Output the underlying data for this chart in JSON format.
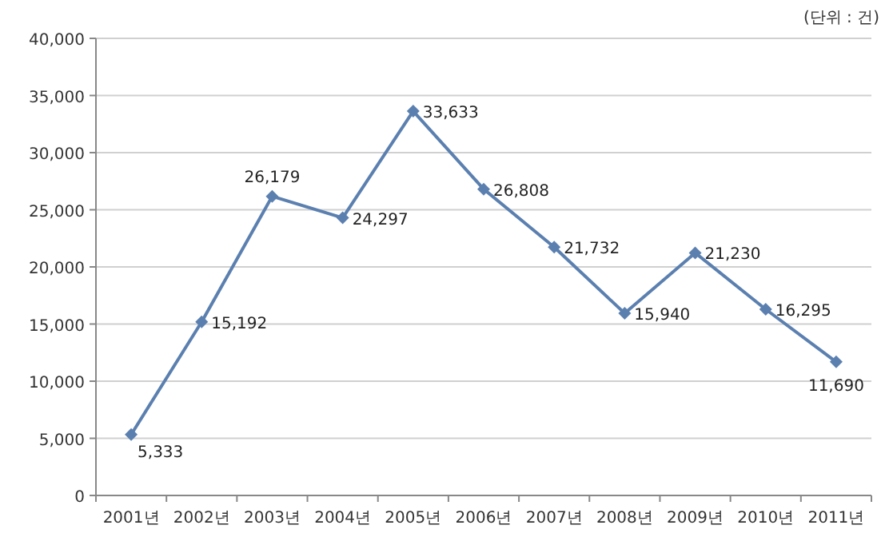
{
  "chart_data": {
    "type": "line",
    "categories": [
      "2001년",
      "2002년",
      "2003년",
      "2004년",
      "2005년",
      "2006년",
      "2007년",
      "2008년",
      "2009년",
      "2010년",
      "2011년"
    ],
    "series": [
      {
        "color": "#5b80b0",
        "values": [
          5333,
          15192,
          26179,
          24297,
          33633,
          26808,
          21732,
          15940,
          21230,
          16295,
          11690
        ],
        "value_labels": [
          "5,333",
          "15,192",
          "26,179",
          "24,297",
          "33,633",
          "26,808",
          "21,732",
          "15,940",
          "21,230",
          "16,295",
          "11,690"
        ]
      }
    ],
    "ylim": [
      0,
      40000
    ],
    "yticks": [
      {
        "value": 0,
        "label": "0"
      },
      {
        "value": 5000,
        "label": "5,000"
      },
      {
        "value": 10000,
        "label": "10,000"
      },
      {
        "value": 15000,
        "label": "15,000"
      },
      {
        "value": 20000,
        "label": "20,000"
      },
      {
        "value": 25000,
        "label": "25,000"
      },
      {
        "value": 30000,
        "label": "30,000"
      },
      {
        "value": 35000,
        "label": "35,000"
      },
      {
        "value": 40000,
        "label": "40,000"
      }
    ],
    "grid": "y",
    "marker": "diamond",
    "line_style": "solid",
    "annotations": [
      "(단위 : 건)"
    ]
  }
}
